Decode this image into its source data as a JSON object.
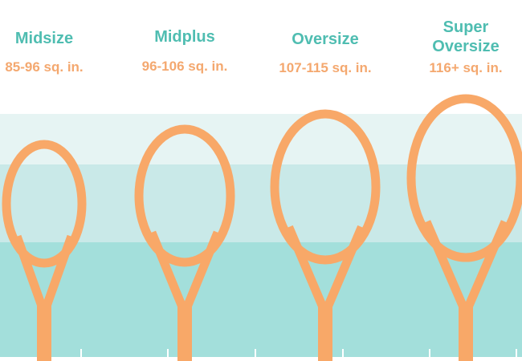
{
  "colors": {
    "title": "#4fbdb1",
    "range": "#f4a86f",
    "racket": "#f8a868",
    "band_light": "#e6f4f3",
    "band_mid": "#c9e9e8",
    "band_dark": "#a3dfdb"
  },
  "categories": [
    {
      "title": "Midsize",
      "range": "85-96 sq. in."
    },
    {
      "title": "Midplus",
      "range": "96-106 sq. in."
    },
    {
      "title": "Oversize",
      "range": "107-115 sq. in."
    },
    {
      "title": "Super Oversize",
      "range": "116+ sq. in."
    }
  ]
}
